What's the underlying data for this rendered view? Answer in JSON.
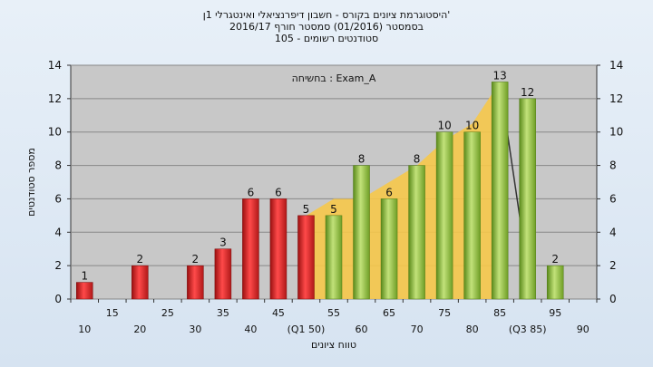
{
  "header": {
    "line1": "היסטוגרמת ציונים בקורס - חשבון דיפרנציאלי ואינטגרלי 1ן'",
    "line2": "בסמסטר  (01/2016)  סמסטר חורף  2016/17",
    "line3": "סטודנטים רשומים - 105"
  },
  "annotation": "בחשיחה : Exam_A",
  "colors": {
    "red": "#e02020",
    "green": "#8cbf3a",
    "band": "#f6c84a",
    "plot_bg": "#c8c8c8"
  },
  "chart_data": {
    "type": "bar",
    "xlabel": "טווח ציונים",
    "ylabel": "מספר סטודנטים",
    "ylim": [
      0,
      14
    ],
    "yticks": [
      0,
      2,
      4,
      6,
      8,
      10,
      12,
      14
    ],
    "x_ticks_upper": [
      "15",
      "25",
      "35",
      "45",
      "55",
      "65",
      "75",
      "85",
      "95"
    ],
    "x_ticks_lower": [
      "10",
      "20",
      "30",
      "40",
      "(Q1 50)",
      "60",
      "70",
      "80",
      "(Q3 85)",
      "90"
    ],
    "x_ticks_upper_slots": [
      1.5,
      3.5,
      5.5,
      7.5,
      9.5,
      11.5,
      13.5,
      15.5,
      17.5
    ],
    "x_ticks_lower_slots": [
      0.5,
      2.5,
      4.5,
      6.5,
      8.5,
      10.5,
      12.5,
      14.5,
      16.5,
      18.5
    ],
    "bars": [
      {
        "slot": 0,
        "value": 1,
        "color": "red"
      },
      {
        "slot": 2,
        "value": 2,
        "color": "red"
      },
      {
        "slot": 4,
        "value": 2,
        "color": "red"
      },
      {
        "slot": 5,
        "value": 3,
        "color": "red"
      },
      {
        "slot": 6,
        "value": 6,
        "color": "red"
      },
      {
        "slot": 7,
        "value": 6,
        "color": "red"
      },
      {
        "slot": 8,
        "value": 5,
        "color": "red"
      },
      {
        "slot": 9,
        "value": 5,
        "color": "green"
      },
      {
        "slot": 10,
        "value": 8,
        "color": "green"
      },
      {
        "slot": 11,
        "value": 6,
        "color": "green"
      },
      {
        "slot": 12,
        "value": 8,
        "color": "green"
      },
      {
        "slot": 13,
        "value": 10,
        "color": "green"
      },
      {
        "slot": 14,
        "value": 10,
        "color": "green"
      },
      {
        "slot": 15,
        "value": 13,
        "color": "green"
      },
      {
        "slot": 16,
        "value": 12,
        "color": "green"
      },
      {
        "slot": 17,
        "value": 2,
        "color": "green"
      }
    ],
    "band": [
      [
        8.5,
        5
      ],
      [
        9.5,
        6
      ],
      [
        10.5,
        6
      ],
      [
        11.5,
        7
      ],
      [
        12.5,
        8
      ],
      [
        13.5,
        9.5
      ],
      [
        14.5,
        10.5
      ],
      [
        15.5,
        13
      ]
    ],
    "line": [
      [
        15.5,
        13
      ],
      [
        16.3,
        4
      ]
    ],
    "grid": "y"
  }
}
